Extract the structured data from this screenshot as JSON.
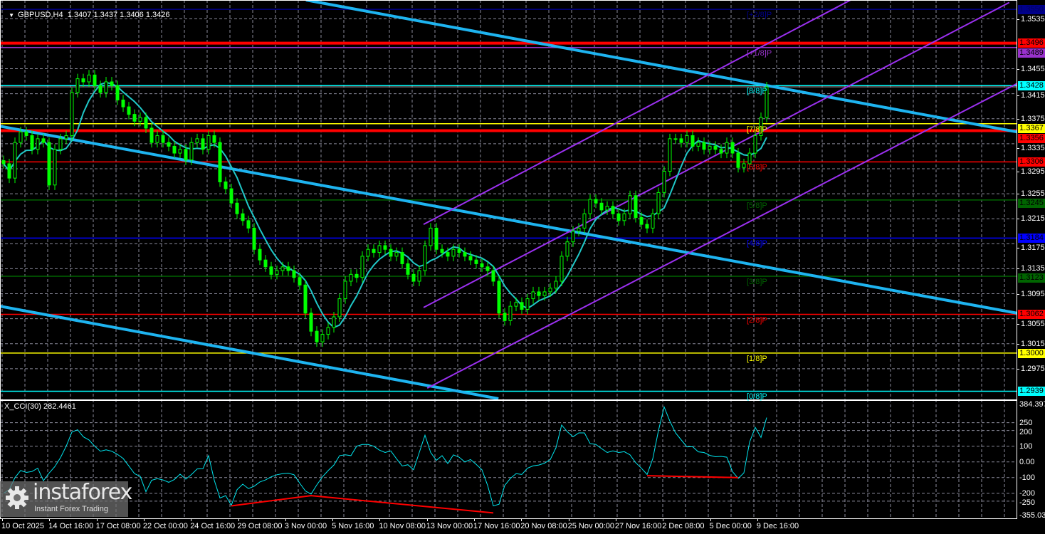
{
  "header": {
    "symbol": "GBPUSD,H4",
    "ohlc": "1.3407 1.3437 1.3406 1.3426"
  },
  "indicator": {
    "label": "X_CCI(30) 282.4461"
  },
  "watermark": {
    "brand": "instaforex",
    "tagline": "Instant Forex Trading"
  },
  "colors": {
    "candle": "#00ff00",
    "ma": "#20c8c8",
    "cci": "#00e5ee",
    "trend": "#1eb4f0",
    "channel": "#9b30f0",
    "divergence": "#ff0000",
    "grid": "#8a8a9a"
  },
  "chart_data": [
    {
      "type": "candlestick",
      "symbol": "GBPUSD",
      "timeframe": "H4",
      "ylim": [
        1.2927,
        1.3565
      ],
      "xlim_bars": [
        -0.6,
        177.9
      ],
      "grid": true,
      "closes": [
        1.3303,
        1.328,
        1.3337,
        1.3354,
        1.3348,
        1.3326,
        1.3343,
        1.3337,
        1.3269,
        1.3326,
        1.3343,
        1.3348,
        1.3417,
        1.3439,
        1.3434,
        1.3445,
        1.3428,
        1.3417,
        1.3434,
        1.3428,
        1.3405,
        1.3394,
        1.3382,
        1.3371,
        1.3377,
        1.336,
        1.3337,
        1.3348,
        1.3337,
        1.3331,
        1.332,
        1.3326,
        1.3309,
        1.3337,
        1.3343,
        1.3326,
        1.3348,
        1.3337,
        1.3274,
        1.3263,
        1.324,
        1.3223,
        1.3212,
        1.32,
        1.3166,
        1.3149,
        1.3138,
        1.3126,
        1.3132,
        1.3138,
        1.3132,
        1.3121,
        1.3109,
        1.3064,
        1.3035,
        1.3018,
        1.303,
        1.3041,
        1.3058,
        1.3087,
        1.3115,
        1.3126,
        1.3121,
        1.3155,
        1.3166,
        1.3161,
        1.3172,
        1.3166,
        1.3155,
        1.3161,
        1.3143,
        1.3126,
        1.3115,
        1.3132,
        1.3172,
        1.32,
        1.3166,
        1.3161,
        1.3155,
        1.3166,
        1.3161,
        1.3155,
        1.3149,
        1.3143,
        1.3138,
        1.3132,
        1.3115,
        1.3064,
        1.3052,
        1.3075,
        1.3081,
        1.307,
        1.3087,
        1.3098,
        1.3092,
        1.3098,
        1.3104,
        1.3115,
        1.3155,
        1.3178,
        1.3195,
        1.32,
        1.3223,
        1.3246,
        1.324,
        1.3229,
        1.3235,
        1.3223,
        1.3212,
        1.3223,
        1.3252,
        1.3217,
        1.3206,
        1.32,
        1.3223,
        1.3257,
        1.3291,
        1.3343,
        1.3343,
        1.3337,
        1.3348,
        1.3331,
        1.3337,
        1.3326,
        1.3331,
        1.3326,
        1.332,
        1.3337,
        1.332,
        1.3297,
        1.3303,
        1.332,
        1.3348,
        1.3377,
        1.3426
      ],
      "price_ticks": [
        "1.3535",
        "1.3455",
        "1.3415",
        "1.3375",
        "1.3335",
        "1.3295",
        "1.3255",
        "1.3215",
        "1.3175",
        "1.3135",
        "1.3095",
        "1.3055",
        "1.3015",
        "1.2975"
      ],
      "time_labels": [
        "10 Oct 2025",
        "14 Oct 16:00",
        "17 Oct 08:00",
        "22 Oct 00:00",
        "24 Oct 16:00",
        "29 Oct 08:00",
        "3 Nov 00:00",
        "5 Nov 16:00",
        "10 Nov 08:00",
        "13 Nov 00:00",
        "17 Nov 16:00",
        "20 Nov 08:00",
        "25 Nov 00:00",
        "27 Nov 16:00",
        "2 Dec 08:00",
        "5 Dec 00:00",
        "9 Dec 16:00"
      ],
      "current_price": 1.3426,
      "levels": [
        {
          "price": 1.355,
          "label": "1.3550",
          "color": "#00008b",
          "text_color": "#000060",
          "murrey": "[+2/8]P",
          "thick": false
        },
        {
          "price": 1.3496,
          "label": "1.3496",
          "color": "#ff0000",
          "text_color": "#000000",
          "murrey": "",
          "thick": true
        },
        {
          "price": 1.3489,
          "label": "1.3489",
          "color": "#9932cc",
          "text_color": "#000000",
          "murrey": "[+1/8]P",
          "thick": false
        },
        {
          "price": 1.3428,
          "label": "1.3428",
          "color": "#00ffff",
          "text_color": "#000000",
          "murrey": "[8/8]P",
          "thick": false
        },
        {
          "price": 1.3367,
          "label": "1.3367",
          "color": "#ffff00",
          "text_color": "#000000",
          "murrey": "[7/8]P",
          "thick": false
        },
        {
          "price": 1.3356,
          "label": "1.3356",
          "color": "#ff0000",
          "text_color": "#000000",
          "murrey": "",
          "thick": true
        },
        {
          "price": 1.3306,
          "label": "1.3306",
          "color": "#ff0000",
          "text_color": "#000000",
          "murrey": "[6/8]P",
          "thick": false
        },
        {
          "price": 1.3245,
          "label": "1.3245",
          "color": "#006400",
          "text_color": "#000000",
          "murrey": "[5/8]P",
          "thick": false
        },
        {
          "price": 1.3184,
          "label": "1.3184",
          "color": "#0000ff",
          "text_color": "#000000",
          "murrey": "[4/8]P",
          "thick": false
        },
        {
          "price": 1.3123,
          "label": "1.3123",
          "color": "#006400",
          "text_color": "#000000",
          "murrey": "[3/8]P",
          "thick": false
        },
        {
          "price": 1.3062,
          "label": "1.3062",
          "color": "#ff0000",
          "text_color": "#000000",
          "murrey": "[2/8]P",
          "thick": false
        },
        {
          "price": 1.3,
          "label": "1.3000",
          "color": "#ffff00",
          "text_color": "#000000",
          "murrey": "[1/8]P",
          "thick": false
        },
        {
          "price": 1.2939,
          "label": "1.2939",
          "color": "#00ffff",
          "text_color": "#000000",
          "murrey": "[0/8]P",
          "thick": false
        }
      ],
      "trendlines": [
        {
          "kind": "trend",
          "from": [
            53.1,
            1.3565
          ],
          "to": [
            177.9,
            1.3354
          ]
        },
        {
          "kind": "trend",
          "from": [
            -0.6,
            1.3363
          ],
          "to": [
            177.9,
            1.3064
          ]
        },
        {
          "kind": "trend",
          "from": [
            -0.6,
            1.3075
          ],
          "to": [
            86.9,
            1.2927
          ]
        },
        {
          "kind": "channel",
          "from": [
            73.75,
            1.3206
          ],
          "to": [
            148.75,
            1.3565
          ]
        },
        {
          "kind": "channel",
          "from": [
            73.75,
            1.3073
          ],
          "to": [
            176.6,
            1.3561
          ]
        },
        {
          "kind": "channel",
          "from": [
            74.4,
            1.2944
          ],
          "to": [
            177.9,
            1.3431
          ]
        }
      ]
    },
    {
      "type": "line",
      "name": "X_CCI(30)",
      "ylim": [
        -355.0318,
        384.3971
      ],
      "tick_labels": [
        {
          "value": 384.3971,
          "label": "384.3971"
        },
        {
          "value": 250,
          "label": "250"
        },
        {
          "value": 200,
          "label": "200"
        },
        {
          "value": 100,
          "label": "100"
        },
        {
          "value": 0,
          "label": "0.00"
        },
        {
          "value": -100,
          "label": "-100"
        },
        {
          "value": -200,
          "label": "-200"
        },
        {
          "value": -250,
          "label": "-250"
        },
        {
          "value": -355.0318,
          "label": "-355.031"
        }
      ],
      "grid_levels": [
        250,
        200,
        100,
        0,
        -100,
        -200,
        -250
      ],
      "values": [
        -200,
        -177,
        -100,
        -55,
        -67,
        -61,
        -40,
        -120,
        -71,
        -30,
        27,
        100,
        190,
        205,
        160,
        140,
        100,
        68,
        77,
        68,
        48,
        22,
        -26,
        -75,
        -92,
        -190,
        -117,
        -107,
        -115,
        -130,
        -112,
        -78,
        -110,
        -80,
        -45,
        -44,
        40,
        -117,
        -230,
        -215,
        -276,
        -177,
        -142,
        -170,
        -155,
        -128,
        -115,
        -95,
        -82,
        -75,
        -72,
        -82,
        -135,
        -185,
        -205,
        -147,
        -95,
        -55,
        -20,
        40,
        45,
        40,
        100,
        111,
        111,
        100,
        75,
        60,
        70,
        20,
        -26,
        -18,
        -50,
        60,
        170,
        60,
        10,
        40,
        -10,
        45,
        30,
        0,
        15,
        -16,
        -50,
        -150,
        -280,
        -270,
        -150,
        -105,
        -75,
        -80,
        -40,
        -25,
        -20,
        -8,
        15,
        90,
        235,
        192,
        160,
        185,
        185,
        117,
        111,
        85,
        60,
        70,
        60,
        65,
        45,
        -5,
        -40,
        -80,
        20,
        200,
        350,
        260,
        185,
        140,
        96,
        97,
        64,
        60,
        42,
        33,
        35,
        30,
        -62,
        -105,
        -70,
        126,
        220,
        156,
        282.4461
      ],
      "divergence_lines": [
        [
          [
            40,
            -280
          ],
          [
            54,
            -215
          ],
          [
            86,
            -325
          ]
        ],
        [
          [
            113,
            -88
          ],
          [
            129,
            -100
          ]
        ]
      ]
    }
  ]
}
